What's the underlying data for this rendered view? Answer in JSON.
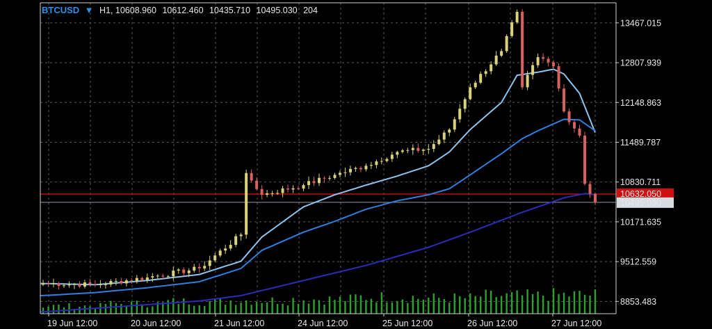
{
  "header": {
    "symbol": "BTCUSD",
    "dropdown_glyph": "▼",
    "timeframe": "H1",
    "open": "10608.960",
    "high": "10612.460",
    "low": "10435.710",
    "close": "10495.030",
    "volume": "204"
  },
  "price_labels": {
    "bid": "10632.050",
    "last": "10495.030"
  },
  "colors": {
    "background": "#000000",
    "bull_candle": "#d9d27a",
    "bear_candle": "#d86060",
    "ma_fast": "#8fc4ee",
    "ma_mid": "#2f7fe0",
    "ma_slow": "#2b2bb8",
    "volume": "#2ea02e",
    "bid_line": "#e01010",
    "last_line": "#8f9aa8",
    "grid": "#5a5a5a"
  },
  "chart_data": {
    "type": "candlestick",
    "y_ticks": [
      "13467.015",
      "12807.939",
      "12148.863",
      "11489.787",
      "10830.711",
      "10171.635",
      "9512.559",
      "8853.483"
    ],
    "x_ticks": [
      "19 Jun 12:00",
      "20 Jun 12:00",
      "21 Jun 12:00",
      "24 Jun 12:00",
      "25 Jun 12:00",
      "26 Jun 12:00",
      "27 Jun 12:00"
    ],
    "ylim": [
      8650,
      13800
    ],
    "grid": true,
    "bars_count": 107,
    "key_closes": [
      {
        "bar": 0,
        "close": 9150
      },
      {
        "bar": 10,
        "close": 9130
      },
      {
        "bar": 20,
        "close": 9250
      },
      {
        "bar": 30,
        "close": 9400
      },
      {
        "bar": 38,
        "close": 9960
      },
      {
        "bar": 39,
        "close": 10980
      },
      {
        "bar": 42,
        "close": 10620
      },
      {
        "bar": 50,
        "close": 10780
      },
      {
        "bar": 56,
        "close": 10950
      },
      {
        "bar": 62,
        "close": 11100
      },
      {
        "bar": 68,
        "close": 11330
      },
      {
        "bar": 74,
        "close": 11380
      },
      {
        "bar": 78,
        "close": 11700
      },
      {
        "bar": 82,
        "close": 12400
      },
      {
        "bar": 88,
        "close": 13000
      },
      {
        "bar": 91,
        "close": 13650
      },
      {
        "bar": 92,
        "close": 12400
      },
      {
        "bar": 95,
        "close": 12900
      },
      {
        "bar": 98,
        "close": 12750
      },
      {
        "bar": 100,
        "close": 12000
      },
      {
        "bar": 103,
        "close": 11600
      },
      {
        "bar": 104,
        "close": 10800
      },
      {
        "bar": 106,
        "close": 10495
      }
    ],
    "series": [
      {
        "kind": "ma",
        "values": [
          [
            0,
            9150
          ],
          [
            10,
            9130
          ],
          [
            20,
            9200
          ],
          [
            30,
            9300
          ],
          [
            38,
            9520
          ],
          [
            42,
            9920
          ],
          [
            50,
            10420
          ],
          [
            56,
            10620
          ],
          [
            62,
            10780
          ],
          [
            68,
            10930
          ],
          [
            74,
            11100
          ],
          [
            78,
            11330
          ],
          [
            82,
            11700
          ],
          [
            88,
            12150
          ],
          [
            91,
            12600
          ],
          [
            95,
            12650
          ],
          [
            98,
            12700
          ],
          [
            100,
            12620
          ],
          [
            103,
            12300
          ],
          [
            106,
            11650
          ]
        ]
      },
      {
        "kind": "ma",
        "values": [
          [
            0,
            8950
          ],
          [
            10,
            9000
          ],
          [
            20,
            9080
          ],
          [
            30,
            9180
          ],
          [
            38,
            9400
          ],
          [
            42,
            9700
          ],
          [
            50,
            10000
          ],
          [
            56,
            10180
          ],
          [
            62,
            10380
          ],
          [
            68,
            10520
          ],
          [
            74,
            10620
          ],
          [
            78,
            10720
          ],
          [
            82,
            10950
          ],
          [
            88,
            11300
          ],
          [
            92,
            11550
          ],
          [
            95,
            11680
          ],
          [
            100,
            11870
          ],
          [
            103,
            11860
          ],
          [
            106,
            11680
          ]
        ]
      },
      {
        "kind": "ma",
        "values": [
          [
            0,
            8680
          ],
          [
            10,
            8740
          ],
          [
            20,
            8800
          ],
          [
            30,
            8860
          ],
          [
            38,
            8950
          ],
          [
            50,
            9200
          ],
          [
            62,
            9450
          ],
          [
            74,
            9750
          ],
          [
            82,
            10000
          ],
          [
            92,
            10330
          ],
          [
            100,
            10570
          ],
          [
            104,
            10640
          ],
          [
            106,
            10620
          ]
        ]
      }
    ],
    "volume_level": [
      0.35,
      0.45,
      0.55,
      0.6,
      0.65,
      0.75,
      0.7,
      0.8,
      0.85
    ]
  }
}
